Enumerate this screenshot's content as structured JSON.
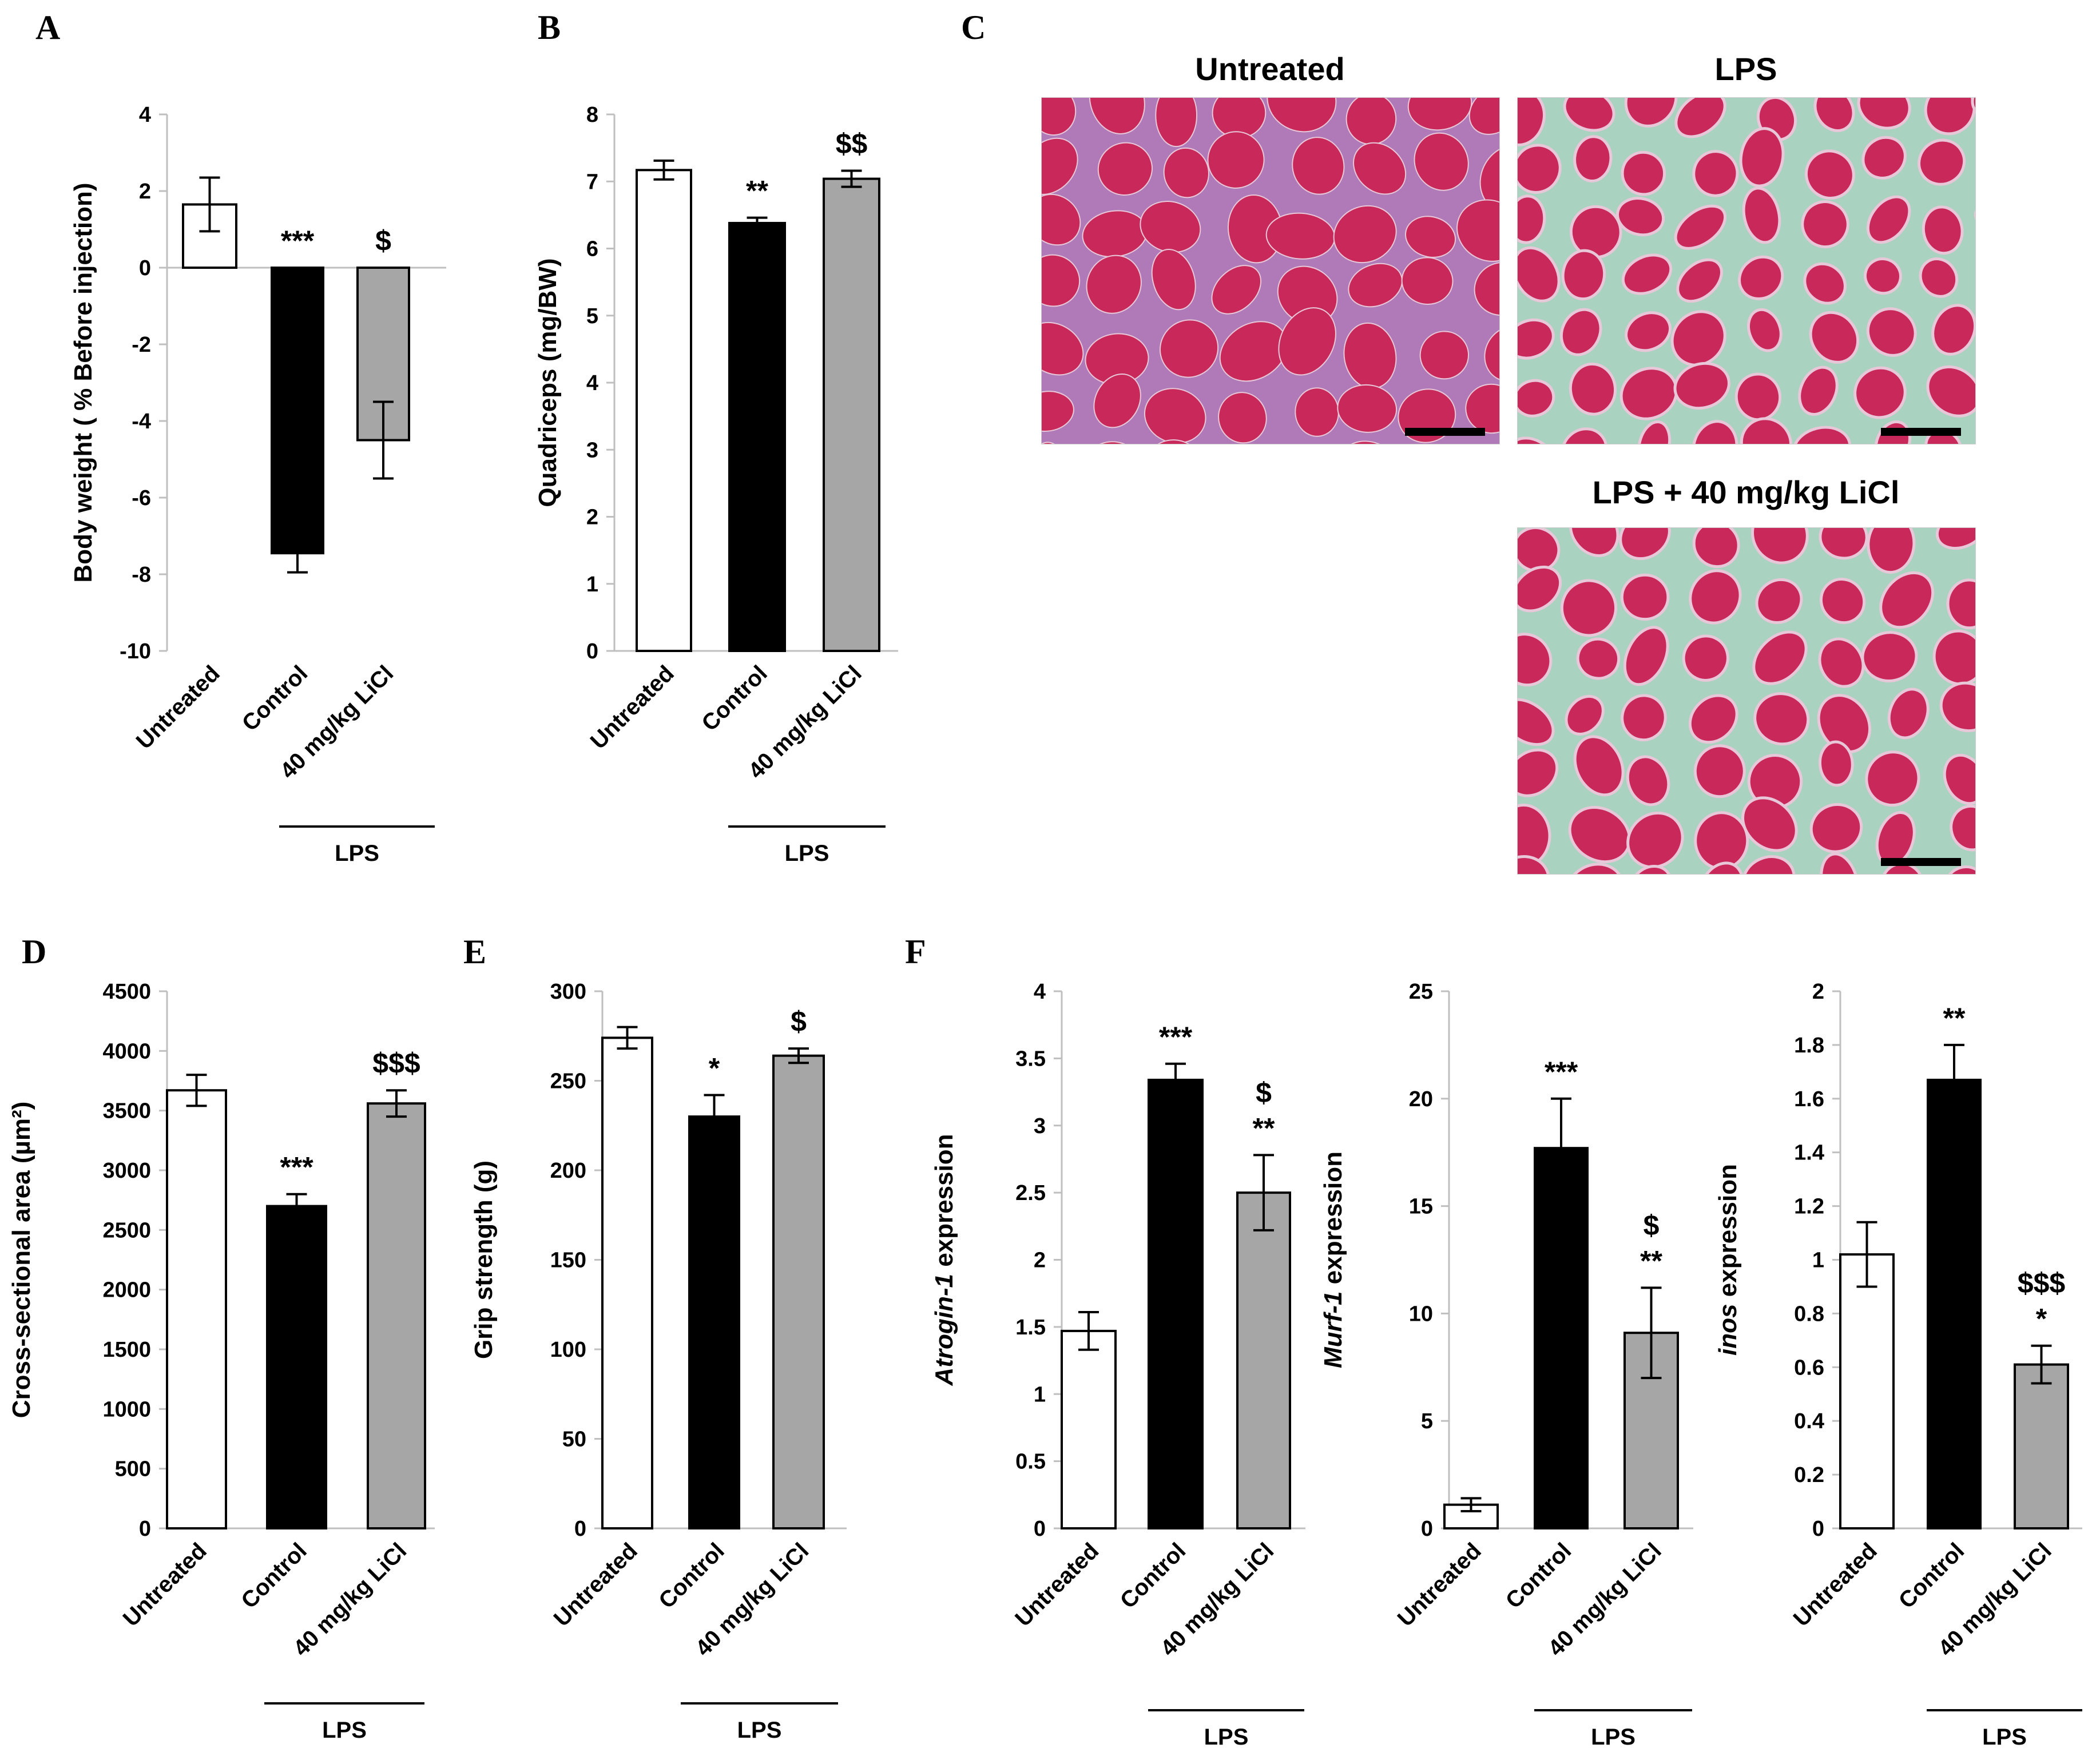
{
  "panels": {
    "A": "A",
    "B": "B",
    "C": "C",
    "D": "D",
    "E": "E",
    "F": "F"
  },
  "histology": {
    "untreated_title": "Untreated",
    "lps_title": "LPS",
    "licl_title": "LPS + 40 mg/kg LiCl",
    "colors": {
      "fiber": "#c8285a",
      "interstitial_untreated": "#b07ab8",
      "interstitial_lps": "#a9d2c0",
      "scale_bar": "#000000"
    }
  },
  "chart_data": [
    {
      "id": "A",
      "type": "bar",
      "categories": [
        "Untreated",
        "Control",
        "40 mg/kg LiCl"
      ],
      "values": [
        1.65,
        -7.45,
        -4.5
      ],
      "errors": [
        0.7,
        0.5,
        1.0
      ],
      "colors": [
        "#ffffff",
        "#000000",
        "#a6a6a6"
      ],
      "annotations": [
        [],
        [
          "***"
        ],
        [
          "$"
        ]
      ],
      "ylabel": "Body weight ( % Before injection)",
      "ylim": [
        -10,
        4
      ],
      "yticks": [
        "4",
        "2",
        "0",
        "-2",
        "-4",
        "-6",
        "-8",
        "-10"
      ],
      "group_label": "LPS",
      "grid": false
    },
    {
      "id": "B",
      "type": "bar",
      "categories": [
        "Untreated",
        "Control",
        "40 mg/kg LiCl"
      ],
      "values": [
        7.17,
        6.38,
        7.04
      ],
      "errors": [
        0.14,
        0.08,
        0.12
      ],
      "colors": [
        "#ffffff",
        "#000000",
        "#a6a6a6"
      ],
      "annotations": [
        [],
        [
          "**"
        ],
        [
          "$$"
        ]
      ],
      "ylabel": "Quadriceps (mg/BW)",
      "ylim": [
        0,
        8
      ],
      "yticks": [
        "8",
        "7",
        "6",
        "5",
        "4",
        "3",
        "2",
        "1",
        "0"
      ],
      "group_label": "LPS",
      "grid": false
    },
    {
      "id": "D",
      "type": "bar",
      "categories": [
        "Untreated",
        "Control",
        "40 mg/kg LiCl"
      ],
      "values": [
        3670,
        2700,
        3560
      ],
      "errors": [
        130,
        100,
        110
      ],
      "colors": [
        "#ffffff",
        "#000000",
        "#a6a6a6"
      ],
      "annotations": [
        [],
        [
          "***"
        ],
        [
          "$$$"
        ]
      ],
      "ylabel": "Cross-sectional area (µm²)",
      "ylim": [
        0,
        4500
      ],
      "yticks": [
        "4500",
        "4000",
        "3500",
        "3000",
        "2500",
        "2000",
        "1500",
        "1000",
        "500",
        "0"
      ],
      "group_label": "LPS",
      "grid": false
    },
    {
      "id": "E",
      "type": "bar",
      "categories": [
        "Untreated",
        "Control",
        "40 mg/kg LiCl"
      ],
      "values": [
        274,
        230,
        264
      ],
      "errors": [
        6,
        12,
        4
      ],
      "colors": [
        "#ffffff",
        "#000000",
        "#a6a6a6"
      ],
      "annotations": [
        [],
        [
          "*"
        ],
        [
          "$"
        ]
      ],
      "ylabel": "Grip strength (g)",
      "ylim": [
        0,
        300
      ],
      "yticks": [
        "300",
        "250",
        "200",
        "150",
        "100",
        "50",
        "0"
      ],
      "group_label": "LPS",
      "grid": false
    },
    {
      "id": "F1",
      "type": "bar",
      "categories": [
        "Untreated",
        "Control",
        "40 mg/kg LiCl"
      ],
      "values": [
        1.47,
        3.34,
        2.5
      ],
      "errors": [
        0.14,
        0.12,
        0.28
      ],
      "colors": [
        "#ffffff",
        "#000000",
        "#a6a6a6"
      ],
      "annotations": [
        [],
        [
          "***"
        ],
        [
          "$",
          "**"
        ]
      ],
      "ylabel_italic": "Atrogin-1",
      "ylabel_rest": " expression",
      "ylim": [
        0,
        4
      ],
      "yticks": [
        "4",
        "3.5",
        "3",
        "2.5",
        "2",
        "1.5",
        "1",
        "0.5",
        "0"
      ],
      "group_label": "LPS",
      "grid": false
    },
    {
      "id": "F2",
      "type": "bar",
      "categories": [
        "Untreated",
        "Control",
        "40 mg/kg LiCl"
      ],
      "values": [
        1.1,
        17.7,
        9.1
      ],
      "errors": [
        0.3,
        2.3,
        2.1
      ],
      "colors": [
        "#ffffff",
        "#000000",
        "#a6a6a6"
      ],
      "annotations": [
        [],
        [
          "***"
        ],
        [
          "$",
          "**"
        ]
      ],
      "ylabel_italic": "Murf-1",
      "ylabel_rest": " expression",
      "ylim": [
        0,
        25
      ],
      "yticks": [
        "25",
        "20",
        "15",
        "10",
        "5",
        "0"
      ],
      "group_label": "LPS",
      "grid": false
    },
    {
      "id": "F3",
      "type": "bar",
      "categories": [
        "Untreated",
        "Control",
        "40 mg/kg LiCl"
      ],
      "values": [
        1.02,
        1.67,
        0.61
      ],
      "errors": [
        0.12,
        0.13,
        0.07
      ],
      "colors": [
        "#ffffff",
        "#000000",
        "#a6a6a6"
      ],
      "annotations": [
        [],
        [
          "**"
        ],
        [
          "$$$",
          "*"
        ]
      ],
      "ylabel_italic": "inos",
      "ylabel_rest": " expression",
      "ylim": [
        0,
        2
      ],
      "yticks": [
        "2",
        "1.8",
        "1.6",
        "1.4",
        "1.2",
        "1",
        "0.8",
        "0.6",
        "0.4",
        "0.2",
        "0"
      ],
      "group_label": "LPS",
      "grid": false
    }
  ]
}
